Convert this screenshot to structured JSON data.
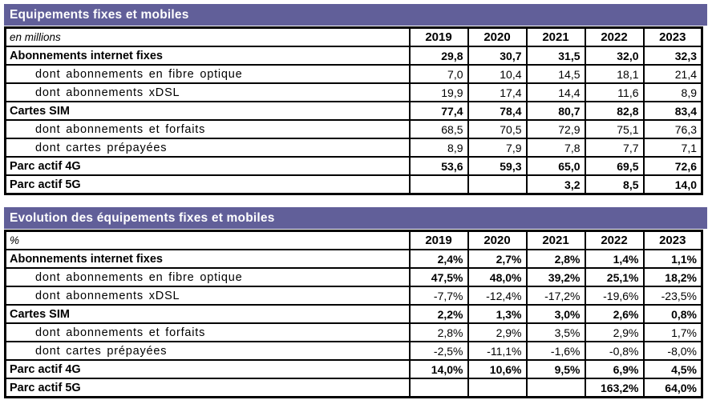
{
  "colors": {
    "title_bar_background": "#615f99",
    "title_bar_text": "#ffffff",
    "table_border": "#000000",
    "body_text": "#000000"
  },
  "tables": [
    {
      "title": "Equipements fixes et mobiles",
      "unit": "en millions",
      "years": [
        "2019",
        "2020",
        "2021",
        "2022",
        "2023"
      ],
      "rows": [
        {
          "label": "Abonnements internet fixes",
          "values": [
            "29,8",
            "30,7",
            "31,5",
            "32,0",
            "32,3"
          ]
        },
        {
          "label": "dont abonnements en fibre optique",
          "values": [
            "7,0",
            "10,4",
            "14,5",
            "18,1",
            "21,4"
          ]
        },
        {
          "label": "dont abonnements xDSL",
          "values": [
            "19,9",
            "17,4",
            "14,4",
            "11,6",
            "8,9"
          ]
        },
        {
          "label": "Cartes SIM",
          "values": [
            "77,4",
            "78,4",
            "80,7",
            "82,8",
            "83,4"
          ]
        },
        {
          "label": "dont abonnements et forfaits",
          "values": [
            "68,5",
            "70,5",
            "72,9",
            "75,1",
            "76,3"
          ]
        },
        {
          "label": "dont cartes prépayées",
          "values": [
            "8,9",
            "7,9",
            "7,8",
            "7,7",
            "7,1"
          ]
        },
        {
          "label": "Parc actif 4G",
          "values": [
            "53,6",
            "59,3",
            "65,0",
            "69,5",
            "72,6"
          ]
        },
        {
          "label": "Parc actif 5G",
          "values": [
            "",
            "",
            "3,2",
            "8,5",
            "14,0"
          ]
        }
      ]
    },
    {
      "title": "Evolution des équipements fixes et mobiles",
      "unit": "%",
      "years": [
        "2019",
        "2020",
        "2021",
        "2022",
        "2023"
      ],
      "rows": [
        {
          "label": "Abonnements internet fixes",
          "values": [
            "2,4%",
            "2,7%",
            "2,8%",
            "1,4%",
            "1,1%"
          ]
        },
        {
          "label": "dont abonnements en fibre optique",
          "values": [
            "47,5%",
            "48,0%",
            "39,2%",
            "25,1%",
            "18,2%"
          ]
        },
        {
          "label": "dont abonnements xDSL",
          "values": [
            "-7,7%",
            "-12,4%",
            "-17,2%",
            "-19,6%",
            "-23,5%"
          ]
        },
        {
          "label": "Cartes SIM",
          "values": [
            "2,2%",
            "1,3%",
            "3,0%",
            "2,6%",
            "0,8%"
          ]
        },
        {
          "label": "dont abonnements et forfaits",
          "values": [
            "2,8%",
            "2,9%",
            "3,5%",
            "2,9%",
            "1,7%"
          ]
        },
        {
          "label": "dont cartes prépayées",
          "values": [
            "-2,5%",
            "-11,1%",
            "-1,6%",
            "-0,8%",
            "-8,0%"
          ]
        },
        {
          "label": "Parc actif 4G",
          "values": [
            "14,0%",
            "10,6%",
            "9,5%",
            "6,9%",
            "4,5%"
          ]
        },
        {
          "label": "Parc actif 5G",
          "values": [
            "",
            "",
            "",
            "163,2%",
            "64,0%"
          ]
        }
      ]
    }
  ]
}
